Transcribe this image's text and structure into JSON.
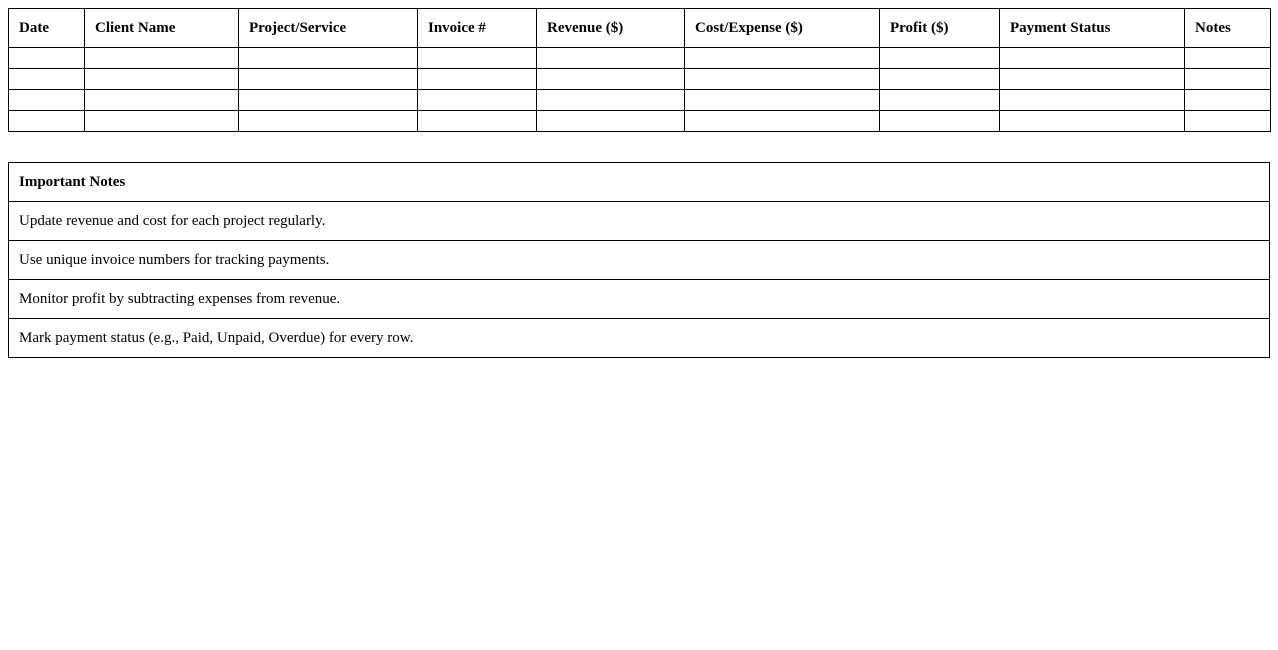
{
  "tracker": {
    "columns": [
      "Date",
      "Client Name",
      "Project/Service",
      "Invoice #",
      "Revenue ($)",
      "Cost/Expense ($)",
      "Profit ($)",
      "Payment Status",
      "Notes"
    ],
    "rows": [
      [
        "",
        "",
        "",
        "",
        "",
        "",
        "",
        "",
        ""
      ],
      [
        "",
        "",
        "",
        "",
        "",
        "",
        "",
        "",
        ""
      ],
      [
        "",
        "",
        "",
        "",
        "",
        "",
        "",
        "",
        ""
      ],
      [
        "",
        "",
        "",
        "",
        "",
        "",
        "",
        "",
        ""
      ]
    ]
  },
  "notes": {
    "title": "Important Notes",
    "items": [
      "Update revenue and cost for each project regularly.",
      "Use unique invoice numbers for tracking payments.",
      "Monitor profit by subtracting expenses from revenue.",
      "Mark payment status (e.g., Paid, Unpaid, Overdue) for every row."
    ]
  }
}
